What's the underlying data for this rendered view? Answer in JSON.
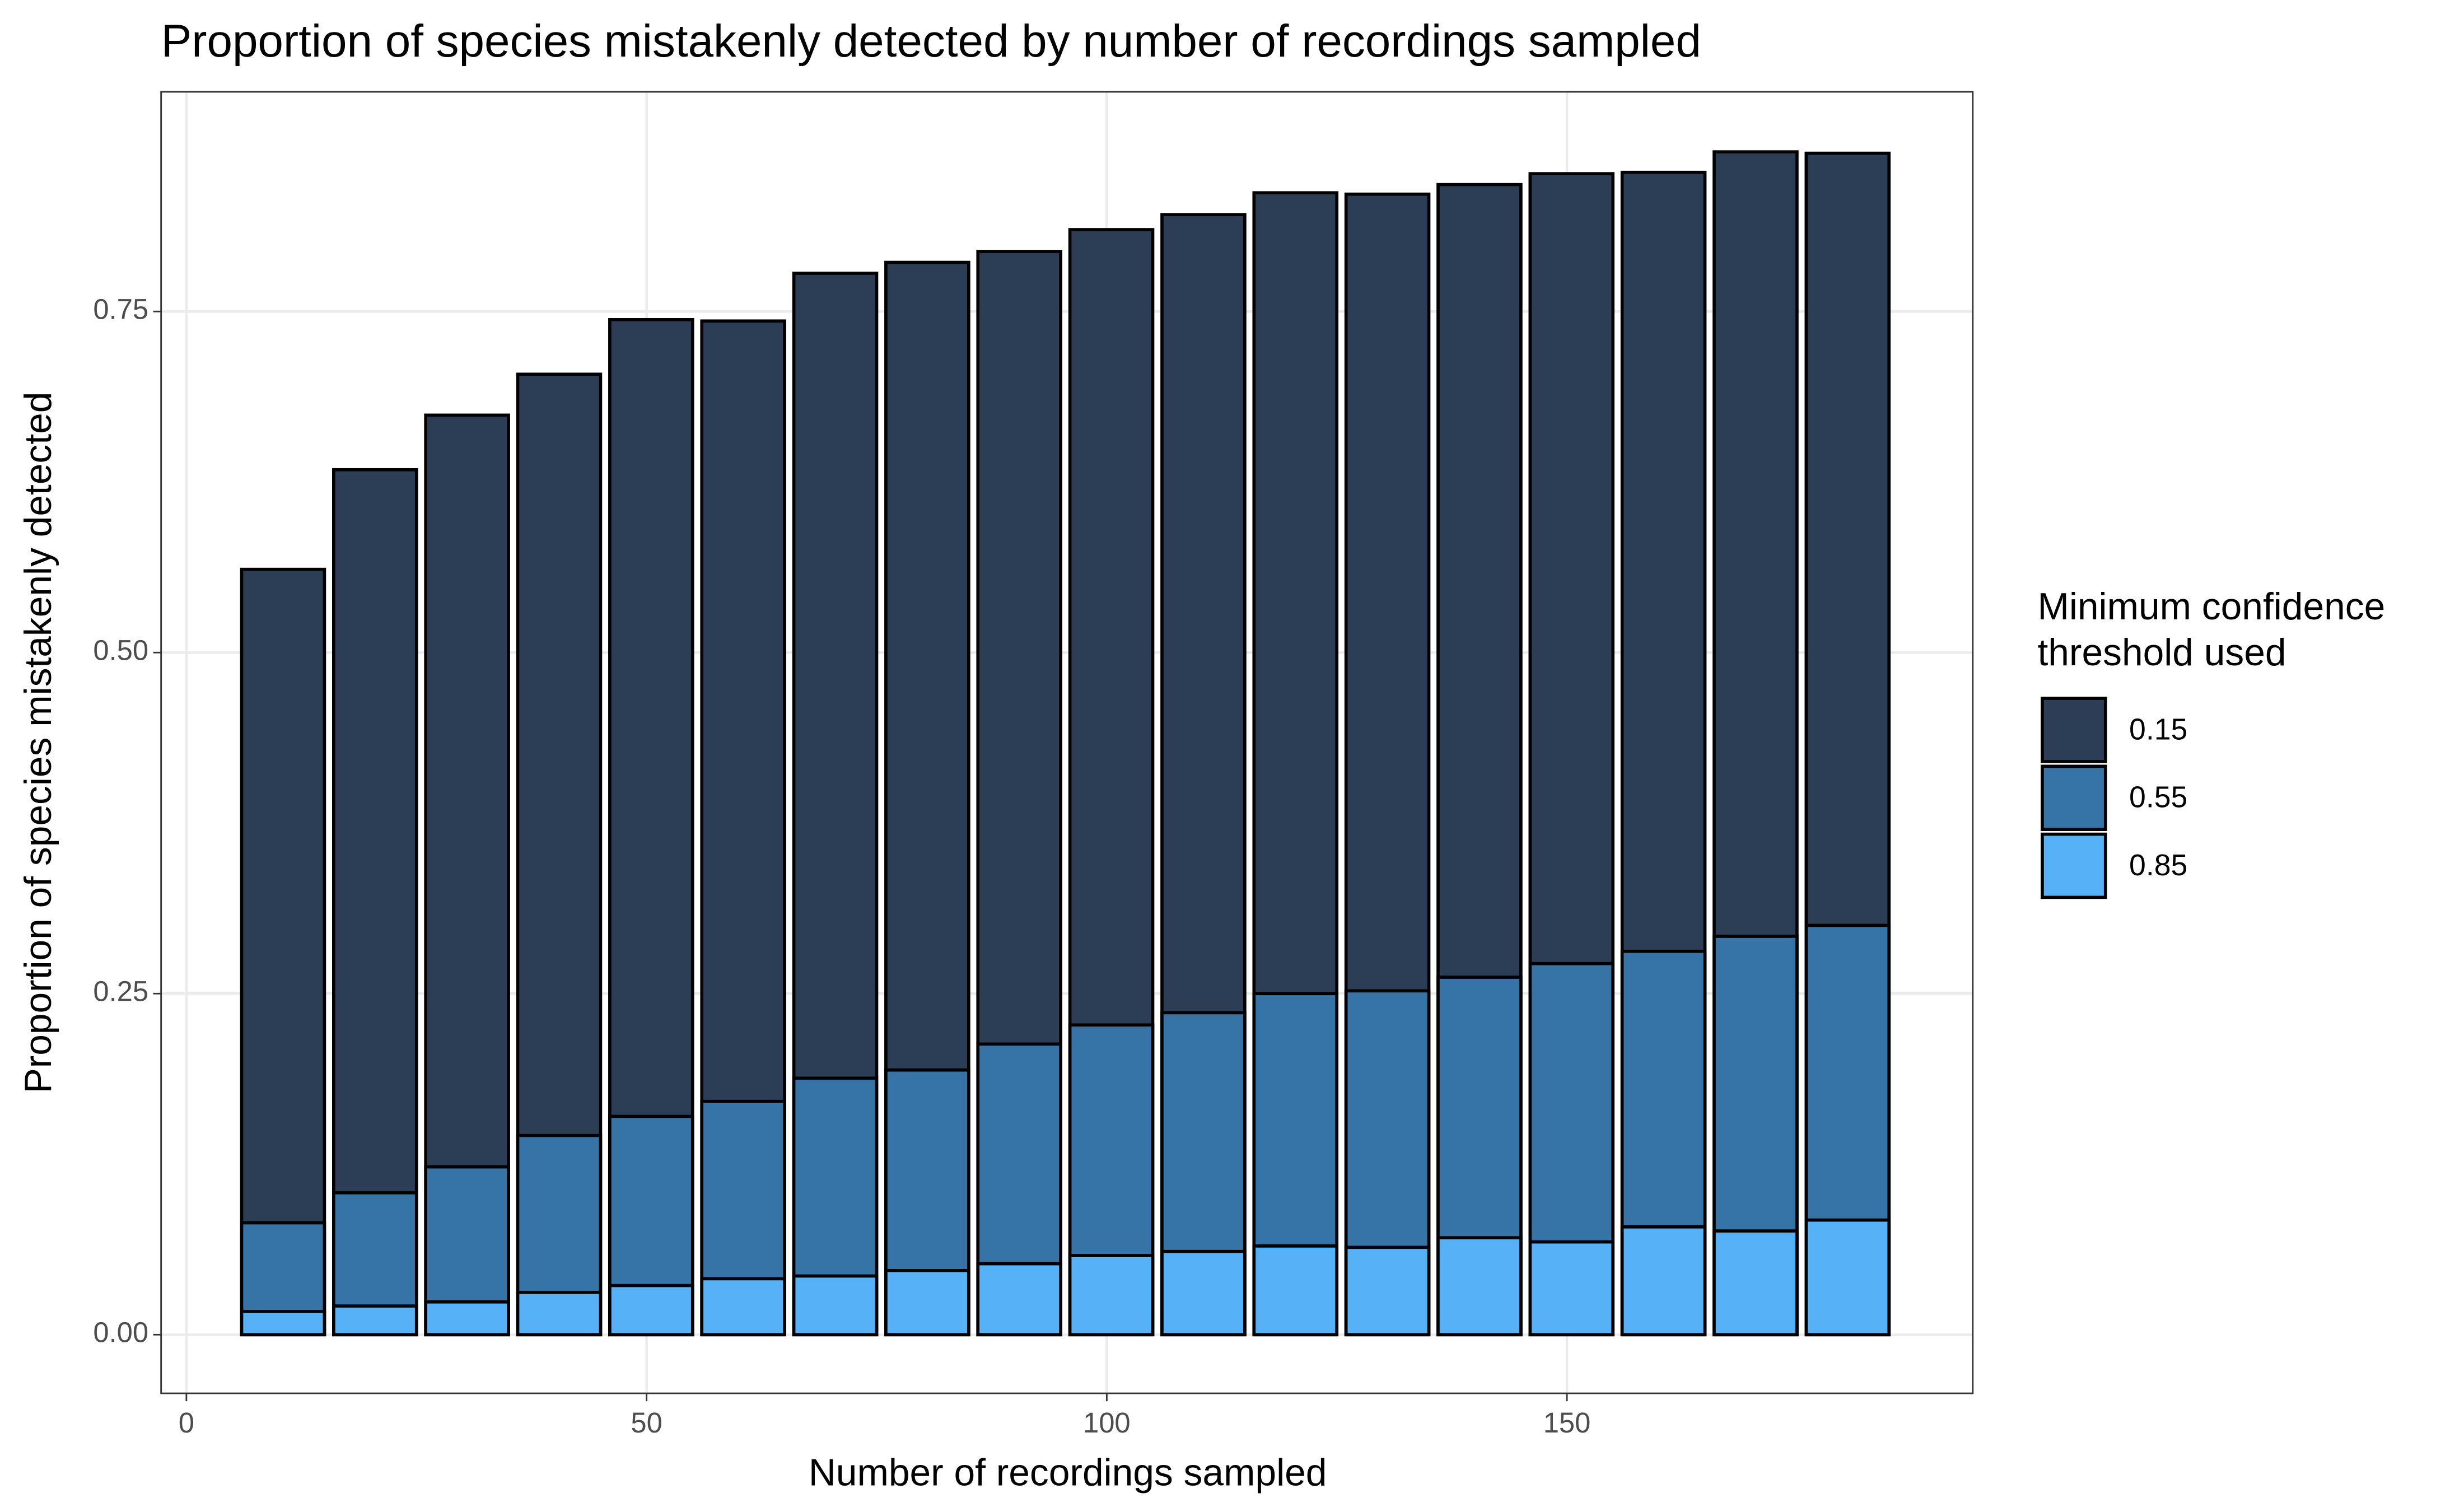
{
  "chart_data": {
    "type": "bar",
    "title": "Proportion of species mistakenly detected by number of recordings sampled",
    "x_label": "Number of recordings sampled",
    "y_label": "Proportion of species mistakenly detected",
    "legend_title": "Minimum confidence threshold used",
    "legend_position": "right",
    "grid": true,
    "x": [
      10.5,
      20.5,
      30.5,
      40.5,
      50.5,
      60.5,
      70.5,
      80.5,
      90.5,
      100.5,
      110.5,
      120.5,
      130.5,
      140.5,
      150.5,
      160.5,
      170.5,
      180.5
    ],
    "series": [
      {
        "name": "0.15",
        "color": "#2b3e55",
        "values": [
          0.561,
          0.634,
          0.674,
          0.704,
          0.744,
          0.743,
          0.778,
          0.786,
          0.794,
          0.81,
          0.821,
          0.837,
          0.836,
          0.843,
          0.851,
          0.852,
          0.867,
          0.866
        ]
      },
      {
        "name": "0.55",
        "color": "#3673a6",
        "values": [
          0.082,
          0.104,
          0.123,
          0.146,
          0.16,
          0.171,
          0.188,
          0.194,
          0.213,
          0.227,
          0.236,
          0.25,
          0.252,
          0.262,
          0.272,
          0.281,
          0.292,
          0.3
        ]
      },
      {
        "name": "0.85",
        "color": "#56b1f7",
        "values": [
          0.017,
          0.021,
          0.024,
          0.031,
          0.036,
          0.041,
          0.043,
          0.047,
          0.052,
          0.058,
          0.061,
          0.065,
          0.064,
          0.071,
          0.068,
          0.079,
          0.076,
          0.084
        ]
      }
    ],
    "xlim": [
      -2.75,
      194.1
    ],
    "xticks": [
      0,
      50,
      100,
      150
    ],
    "ylim": [
      -0.043,
      0.911
    ],
    "yticks": [
      {
        "value": 0,
        "label": "0.00"
      },
      {
        "value": 0.25,
        "label": "0.25"
      },
      {
        "value": 0.5,
        "label": "0.50"
      },
      {
        "value": 0.75,
        "label": "0.75"
      }
    ]
  }
}
